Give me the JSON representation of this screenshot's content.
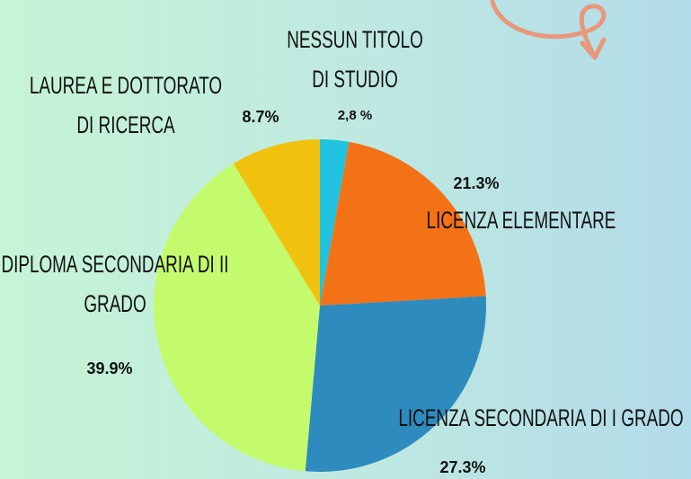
{
  "chart_data": {
    "type": "pie",
    "categories": [
      "NESSUN TITOLO DI STUDIO",
      "LICENZA ELEMENTARE",
      "LICENZA SECONDARIA DI I GRADO",
      "DIPLOMA SECONDARIA DI II GRADO",
      "LAUREA E DOTTORATO DI RICERCA"
    ],
    "values": [
      2.8,
      21.3,
      27.3,
      39.9,
      8.7
    ],
    "value_labels": [
      "2,8 %",
      "21.3%",
      "27.3%",
      "39.9%",
      "8.7%"
    ],
    "colors": [
      "#1fc3e0",
      "#f47216",
      "#2e8bbd",
      "#c3fb6d",
      "#f0c20e"
    ]
  }
}
